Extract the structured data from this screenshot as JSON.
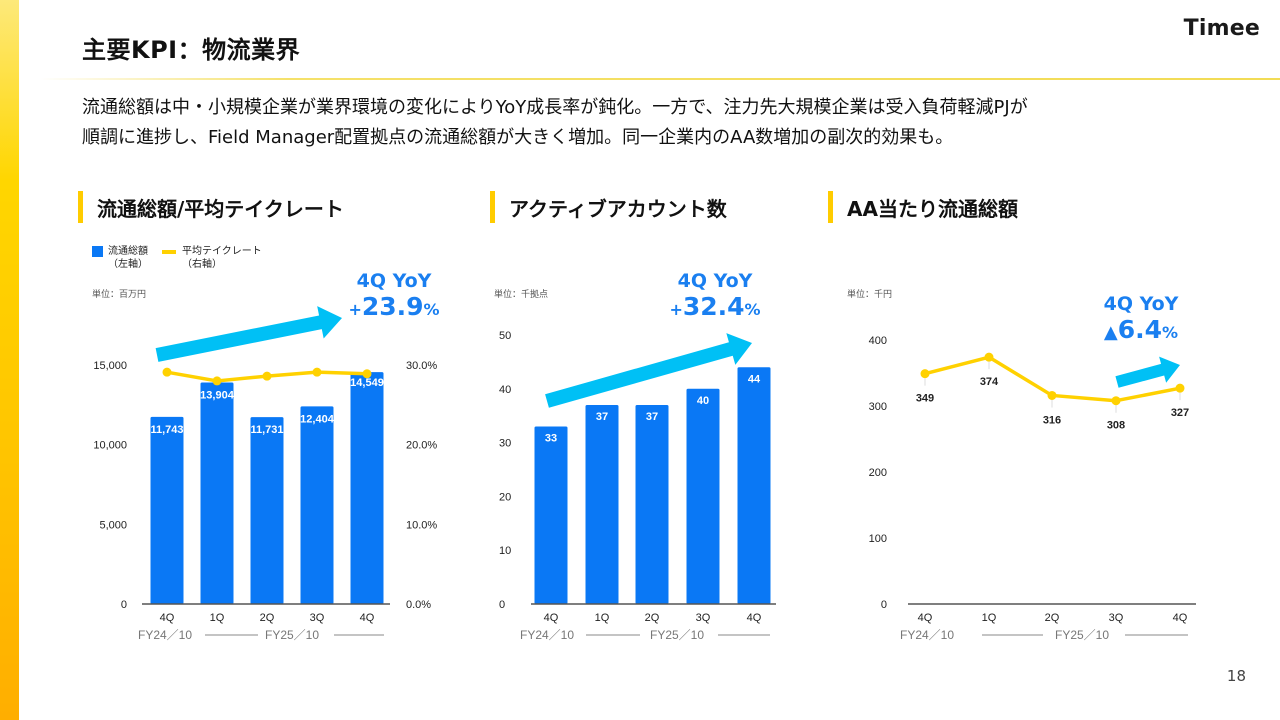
{
  "page": {
    "title": "主要KPI：物流業界",
    "brand": "Timee",
    "summary_lines": [
      "流通総額は中・小規模企業が業界環境の変化によりYoY成長率が鈍化。一方で、注力先大規模企業は受入負荷軽減PJが",
      "順調に進捗し、Field Manager配置拠点の流通総額が大きく増加。同一企業内のAA数増加の副次的効果も。"
    ],
    "page_number": "18",
    "colors": {
      "bar": "#0a78f5",
      "line": "#ffd100",
      "arrow": "#00c0f5",
      "yoy_text": "#1a7ff0",
      "accent": "#ffcc00"
    }
  },
  "sections": [
    {
      "title": "流通総額/平均テイクレート"
    },
    {
      "title": "アクティブアカウント数"
    },
    {
      "title": "AA当たり流通総額"
    }
  ],
  "legend": {
    "bar": {
      "line1": "流通総額",
      "line2": "（左軸）"
    },
    "line": {
      "line1": "平均テイクレート",
      "line2": "（右軸）"
    }
  },
  "chart_data": [
    {
      "type": "bar",
      "title": "流通総額/平均テイクレート",
      "unit": "単位：百万円",
      "categories": [
        "4Q",
        "1Q",
        "2Q",
        "3Q",
        "4Q"
      ],
      "fiscal_groups": [
        {
          "label": "FY24／10",
          "span": [
            "4Q"
          ]
        },
        {
          "label": "FY25／10",
          "span": [
            "1Q",
            "2Q",
            "3Q",
            "4Q"
          ]
        }
      ],
      "series": [
        {
          "name": "流通総額（左軸）",
          "axis": "left",
          "type": "bar",
          "values": [
            11743,
            13904,
            11731,
            12404,
            14549
          ],
          "labels": [
            "11,743",
            "13,904",
            "11,731",
            "12,404",
            "14,549"
          ]
        },
        {
          "name": "平均テイクレート（右軸）",
          "axis": "right",
          "type": "line",
          "values": [
            29.1,
            28.0,
            28.6,
            29.1,
            28.9
          ]
        }
      ],
      "y_left": {
        "range": [
          0,
          15000
        ],
        "ticks": [
          "0",
          "5,000",
          "10,000",
          "15,000"
        ],
        "tick_values": [
          0,
          5000,
          10000,
          15000
        ]
      },
      "y_right": {
        "range": [
          0,
          30
        ],
        "ticks": [
          "0.0%",
          "10.0%",
          "20.0%",
          "30.0%"
        ],
        "tick_values": [
          0,
          10,
          20,
          30
        ]
      },
      "annotation": {
        "line1": "4Q YoY",
        "sign": "+",
        "value": "23.9",
        "suffix": "%"
      },
      "grid": false
    },
    {
      "type": "bar",
      "title": "アクティブアカウント数",
      "unit": "単位：千拠点",
      "categories": [
        "4Q",
        "1Q",
        "2Q",
        "3Q",
        "4Q"
      ],
      "fiscal_groups": [
        {
          "label": "FY24／10",
          "span": [
            "4Q"
          ]
        },
        {
          "label": "FY25／10",
          "span": [
            "1Q",
            "2Q",
            "3Q",
            "4Q"
          ]
        }
      ],
      "values": [
        33,
        37,
        37,
        40,
        44
      ],
      "labels": [
        "33",
        "37",
        "37",
        "40",
        "44"
      ],
      "y": {
        "range": [
          0,
          50
        ],
        "ticks": [
          "0",
          "10",
          "20",
          "30",
          "40",
          "50"
        ],
        "tick_values": [
          0,
          10,
          20,
          30,
          40,
          50
        ]
      },
      "annotation": {
        "line1": "4Q YoY",
        "sign": "+",
        "value": "32.4",
        "suffix": "%"
      },
      "grid": false
    },
    {
      "type": "line",
      "title": "AA当たり流通総額",
      "unit": "単位：千円",
      "categories": [
        "4Q",
        "1Q",
        "2Q",
        "3Q",
        "4Q"
      ],
      "fiscal_groups": [
        {
          "label": "FY24／10",
          "span": [
            "4Q"
          ]
        },
        {
          "label": "FY25／10",
          "span": [
            "1Q",
            "2Q",
            "3Q",
            "4Q"
          ]
        }
      ],
      "values": [
        349,
        374,
        316,
        308,
        327
      ],
      "labels": [
        "349",
        "374",
        "316",
        "308",
        "327"
      ],
      "y": {
        "range": [
          0,
          400
        ],
        "ticks": [
          "0",
          "100",
          "200",
          "300",
          "400"
        ],
        "tick_values": [
          0,
          100,
          200,
          300,
          400
        ]
      },
      "annotation": {
        "line1": "4Q YoY",
        "sign": "▲",
        "value": "6.4",
        "suffix": "%"
      },
      "grid": false
    }
  ]
}
